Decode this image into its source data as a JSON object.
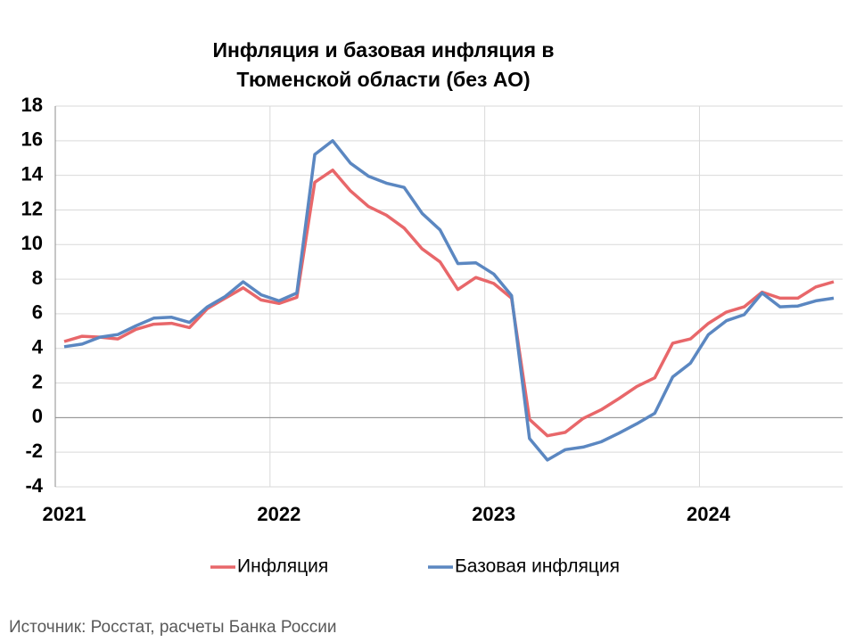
{
  "chart_data": {
    "type": "line",
    "title": [
      "Инфляция и базовая инфляция в",
      "Тюменской области (без АО)"
    ],
    "categories": [
      "2021",
      null,
      null,
      null,
      null,
      null,
      null,
      null,
      null,
      null,
      null,
      null,
      "2022",
      null,
      null,
      null,
      null,
      null,
      null,
      null,
      null,
      null,
      null,
      null,
      "2023",
      null,
      null,
      null,
      null,
      null,
      null,
      null,
      null,
      null,
      null,
      null,
      "2024",
      null,
      null,
      null,
      null,
      null,
      null,
      null
    ],
    "series": [
      {
        "name": "Инфляция",
        "color": "#e8676a",
        "values": [
          4.4,
          4.7,
          4.65,
          4.55,
          5.1,
          5.4,
          5.45,
          5.2,
          6.3,
          6.9,
          7.5,
          6.8,
          6.6,
          6.95,
          13.6,
          14.3,
          13.1,
          12.2,
          11.7,
          10.95,
          9.75,
          9.0,
          7.4,
          8.1,
          7.75,
          6.9,
          -0.1,
          -1.05,
          -0.85,
          -0.05,
          0.45,
          1.1,
          1.8,
          2.3,
          4.3,
          4.55,
          5.45,
          6.1,
          6.4,
          7.25,
          6.9,
          6.9,
          7.55,
          7.85
        ]
      },
      {
        "name": "Базовая инфляция",
        "color": "#5b87c1",
        "values": [
          4.1,
          4.25,
          4.65,
          4.8,
          5.3,
          5.75,
          5.8,
          5.5,
          6.4,
          7.0,
          7.85,
          7.1,
          6.75,
          7.2,
          15.2,
          16.0,
          14.7,
          13.95,
          13.55,
          13.3,
          11.8,
          10.85,
          8.9,
          8.95,
          8.3,
          7.05,
          -1.2,
          -2.45,
          -1.85,
          -1.7,
          -1.4,
          -0.9,
          -0.35,
          0.25,
          2.35,
          3.15,
          4.8,
          5.6,
          5.95,
          7.2,
          6.4,
          6.45,
          6.75,
          6.9
        ]
      }
    ],
    "ylim": [
      -4,
      18
    ],
    "yticks": [
      -4,
      -2,
      0,
      2,
      4,
      6,
      8,
      10,
      12,
      14,
      16,
      18
    ],
    "grid": true,
    "legend": "bottom",
    "source": "Источник: Росстат, расчеты Банка России"
  }
}
